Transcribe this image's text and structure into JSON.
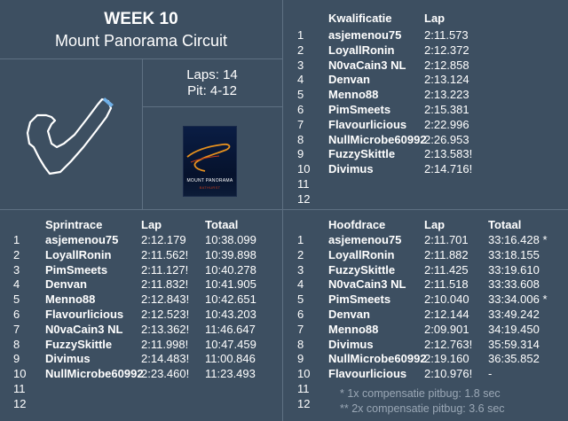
{
  "event": {
    "week": "WEEK 10",
    "circuit": "Mount Panorama Circuit",
    "laps": "Laps: 14",
    "pit": "Pit: 4-12"
  },
  "poster": {
    "line1": "MOUNT PANORAMA",
    "line2": "BATHURST"
  },
  "kwalificatie": {
    "headers": [
      "Kwalificatie",
      "Lap"
    ],
    "rows": [
      [
        "1",
        "asjemenou75",
        "2:11.573"
      ],
      [
        "2",
        "LoyallRonin",
        "2:12.372"
      ],
      [
        "3",
        "N0vaCain3 NL",
        "2:12.858"
      ],
      [
        "4",
        "Denvan",
        "2:13.124"
      ],
      [
        "5",
        "Menno88",
        "2:13.223"
      ],
      [
        "6",
        "PimSmeets",
        "2:15.381"
      ],
      [
        "7",
        "Flavourlicious",
        "2:22.996"
      ],
      [
        "8",
        "NullMicrobe60992",
        "2:26.953"
      ],
      [
        "9",
        "FuzzySkittle",
        "2:13.583!"
      ],
      [
        "10",
        "Divimus",
        "2:14.716!"
      ],
      [
        "11",
        "",
        ""
      ],
      [
        "12",
        "",
        ""
      ]
    ]
  },
  "sprintrace": {
    "headers": [
      "Sprintrace",
      "Lap",
      "Totaal"
    ],
    "rows": [
      [
        "1",
        "asjemenou75",
        "2:12.179",
        "10:38.099"
      ],
      [
        "2",
        "LoyallRonin",
        "2:11.562!",
        "10:39.898"
      ],
      [
        "3",
        "PimSmeets",
        "2:11.127!",
        "10:40.278"
      ],
      [
        "4",
        "Denvan",
        "2:11.832!",
        "10:41.905"
      ],
      [
        "5",
        "Menno88",
        "2:12.843!",
        "10:42.651"
      ],
      [
        "6",
        "Flavourlicious",
        "2:12.523!",
        "10:43.203"
      ],
      [
        "7",
        "N0vaCain3 NL",
        "2:13.362!",
        "11:46.647"
      ],
      [
        "8",
        "FuzzySkittle",
        "2:11.998!",
        "10:47.459"
      ],
      [
        "9",
        "Divimus",
        "2:14.483!",
        "11:00.846"
      ],
      [
        "10",
        "NullMicrobe60992",
        "2:23.460!",
        "11:23.493"
      ],
      [
        "11",
        "",
        "",
        ""
      ],
      [
        "12",
        "",
        "",
        ""
      ]
    ]
  },
  "hoofdrace": {
    "headers": [
      "Hoofdrace",
      "Lap",
      "Totaal"
    ],
    "rows": [
      [
        "1",
        "asjemenou75",
        "2:11.701",
        "33:16.428 *"
      ],
      [
        "2",
        "LoyallRonin",
        "2:11.882",
        "33:18.155"
      ],
      [
        "3",
        "FuzzySkittle",
        "2:11.425",
        "33:19.610"
      ],
      [
        "4",
        "N0vaCain3 NL",
        "2:11.518",
        "33:33.608"
      ],
      [
        "5",
        "PimSmeets",
        "2:10.040",
        "33:34.006 *"
      ],
      [
        "6",
        "Denvan",
        "2:12.144",
        "33:49.242"
      ],
      [
        "7",
        "Menno88",
        "2:09.901",
        "34:19.450"
      ],
      [
        "8",
        "Divimus",
        "2:12.763!",
        "35:59.314"
      ],
      [
        "9",
        "NullMicrobe60992",
        "2:19.160",
        "36:35.852"
      ],
      [
        "10",
        "Flavourlicious",
        "2:10.976!",
        "-"
      ],
      [
        "11",
        "",
        "",
        ""
      ],
      [
        "12",
        "",
        "",
        ""
      ]
    ],
    "notes": [
      "*   1x compensatie pitbug: 1.8 sec",
      "**  2x compensatie pitbug: 3.6 sec"
    ]
  }
}
